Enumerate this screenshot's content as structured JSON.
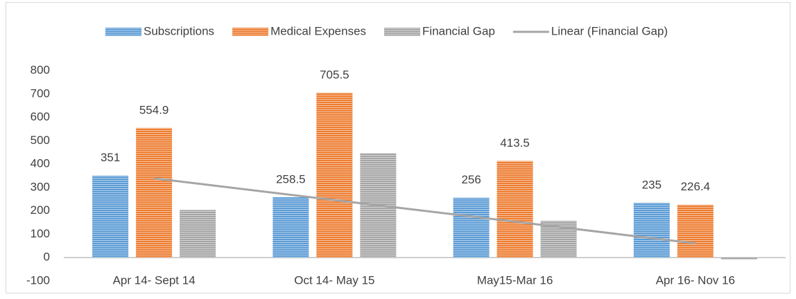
{
  "chart_data": {
    "type": "bar",
    "categories": [
      "Apr 14- Sept 14",
      "Oct 14- May 15",
      "May15-Mar 16",
      "Apr 16- Nov 16"
    ],
    "series": [
      {
        "name": "Subscriptions",
        "color": "#5b9bd5",
        "values": [
          351,
          258.5,
          256,
          235
        ],
        "data_labels": true
      },
      {
        "name": "Medical Expenses",
        "color": "#ed7d31",
        "values": [
          554.9,
          705.5,
          413.5,
          226.4
        ],
        "data_labels": true
      },
      {
        "name": "Financial Gap",
        "color": "#a5a5a5",
        "values": [
          203.9,
          447,
          157.5,
          -8.6
        ],
        "data_labels": false,
        "trendline": {
          "name": "Linear (Financial Gap)",
          "color": "#a5a5a5"
        }
      }
    ],
    "ylim": [
      -100,
      800
    ],
    "yticks": [
      -100,
      0,
      100,
      200,
      300,
      400,
      500,
      600,
      700,
      800
    ],
    "grid": false,
    "legend": "top"
  }
}
